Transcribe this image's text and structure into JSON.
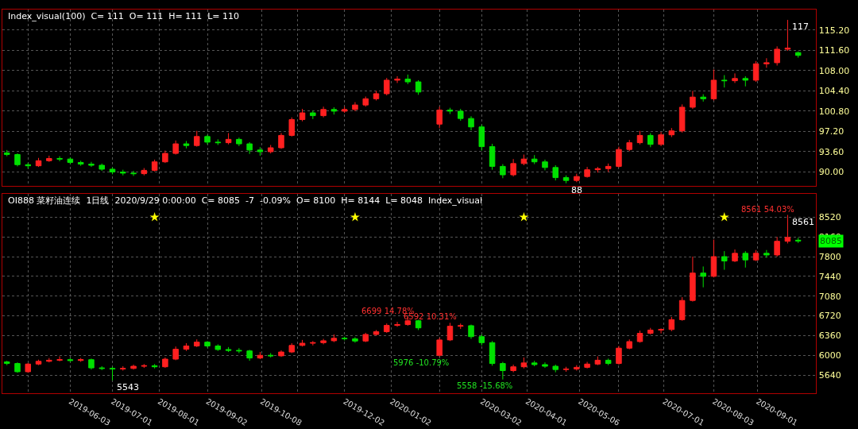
{
  "chart_data": [
    {
      "type": "candlestick",
      "title": "Index_visual(100)  C= 111  O= 111  H= 111  L= 110",
      "x": [
        "2019-04-22",
        "2019-04-29",
        "2019-05-06",
        "2019-05-13",
        "2019-05-20",
        "2019-05-27",
        "2019-06-03",
        "2019-06-10",
        "2019-06-17",
        "2019-06-24",
        "2019-07-01",
        "2019-07-08",
        "2019-07-15",
        "2019-07-22",
        "2019-07-29",
        "2019-08-05",
        "2019-08-12",
        "2019-08-19",
        "2019-08-26",
        "2019-09-02",
        "2019-09-09",
        "2019-09-16",
        "2019-09-23",
        "2019-09-30",
        "2019-10-07",
        "2019-10-14",
        "2019-10-21",
        "2019-10-28",
        "2019-11-04",
        "2019-11-11",
        "2019-11-18",
        "2019-11-25",
        "2019-12-02",
        "2019-12-09",
        "2019-12-16",
        "2019-12-23",
        "2019-12-30",
        "2020-01-06",
        "2020-01-13",
        "2020-01-20",
        "2020-02-03",
        "2020-02-10",
        "2020-02-17",
        "2020-02-24",
        "2020-03-02",
        "2020-03-09",
        "2020-03-16",
        "2020-03-23",
        "2020-03-30",
        "2020-04-06",
        "2020-04-13",
        "2020-04-20",
        "2020-04-27",
        "2020-05-04",
        "2020-05-11",
        "2020-05-18",
        "2020-05-25",
        "2020-06-01",
        "2020-06-08",
        "2020-06-15",
        "2020-06-22",
        "2020-06-29",
        "2020-07-06",
        "2020-07-13",
        "2020-07-20",
        "2020-07-27",
        "2020-08-03",
        "2020-08-10",
        "2020-08-17",
        "2020-08-24",
        "2020-08-31",
        "2020-09-07",
        "2020-09-14",
        "2020-09-21",
        "2020-09-28"
      ],
      "ohlc": [
        [
          93.4,
          93.9,
          92.8,
          93.1
        ],
        [
          93.1,
          93.3,
          91.0,
          91.3
        ],
        [
          91.3,
          91.6,
          90.6,
          91.1
        ],
        [
          91.1,
          92.5,
          90.9,
          92.0
        ],
        [
          92.0,
          92.9,
          91.8,
          92.4
        ],
        [
          92.4,
          92.8,
          91.9,
          92.3
        ],
        [
          92.3,
          92.6,
          91.4,
          91.7
        ],
        [
          91.7,
          92.0,
          91.1,
          91.4
        ],
        [
          91.4,
          91.8,
          90.9,
          91.2
        ],
        [
          91.2,
          91.5,
          90.2,
          90.5
        ],
        [
          90.5,
          90.8,
          89.6,
          90.0
        ],
        [
          90.0,
          90.4,
          89.4,
          89.8
        ],
        [
          89.8,
          90.2,
          89.3,
          89.7
        ],
        [
          89.7,
          90.7,
          89.4,
          90.3
        ],
        [
          90.3,
          92.2,
          90.1,
          91.8
        ],
        [
          91.8,
          93.8,
          91.6,
          93.3
        ],
        [
          93.3,
          95.6,
          93.1,
          95.0
        ],
        [
          95.0,
          95.5,
          94.2,
          94.7
        ],
        [
          94.7,
          97.3,
          94.5,
          96.3
        ],
        [
          96.3,
          96.6,
          94.9,
          95.3
        ],
        [
          95.3,
          95.8,
          94.8,
          95.2
        ],
        [
          95.2,
          96.9,
          94.9,
          95.8
        ],
        [
          95.8,
          96.1,
          94.6,
          95.0
        ],
        [
          95.0,
          95.3,
          93.2,
          93.9
        ],
        [
          93.9,
          94.4,
          92.9,
          93.6
        ],
        [
          93.6,
          94.8,
          93.3,
          94.3
        ],
        [
          94.3,
          96.9,
          94.1,
          96.5
        ],
        [
          96.5,
          99.7,
          96.3,
          99.3
        ],
        [
          99.3,
          101.2,
          99.0,
          100.5
        ],
        [
          100.5,
          100.9,
          99.4,
          100.0
        ],
        [
          100.0,
          101.6,
          99.7,
          101.1
        ],
        [
          101.1,
          101.5,
          100.2,
          100.8
        ],
        [
          100.8,
          101.6,
          100.5,
          101.1
        ],
        [
          101.1,
          102.4,
          100.8,
          101.9
        ],
        [
          101.9,
          103.4,
          101.6,
          103.0
        ],
        [
          103.0,
          104.4,
          102.7,
          103.9
        ],
        [
          103.9,
          106.7,
          103.6,
          106.3
        ],
        [
          106.3,
          107.0,
          105.8,
          106.5
        ],
        [
          106.5,
          107.3,
          105.6,
          106.0
        ],
        [
          106.0,
          106.3,
          103.7,
          104.2
        ],
        [
          98.5,
          101.6,
          97.8,
          101.0
        ],
        [
          101.0,
          101.4,
          100.3,
          100.8
        ],
        [
          100.8,
          101.2,
          99.1,
          99.5
        ],
        [
          99.5,
          99.9,
          97.4,
          98.0
        ],
        [
          98.0,
          98.4,
          93.8,
          94.5
        ],
        [
          94.5,
          95.0,
          90.4,
          91.0
        ],
        [
          91.0,
          91.4,
          88.9,
          89.5
        ],
        [
          89.5,
          92.3,
          89.2,
          91.5
        ],
        [
          91.5,
          93.1,
          91.2,
          92.3
        ],
        [
          92.3,
          93.0,
          91.4,
          91.8
        ],
        [
          91.8,
          92.2,
          90.3,
          90.8
        ],
        [
          90.8,
          91.2,
          88.5,
          89.0
        ],
        [
          89.0,
          89.4,
          88.0,
          88.5
        ],
        [
          88.5,
          89.7,
          88.2,
          89.2
        ],
        [
          89.2,
          90.9,
          89.0,
          90.4
        ],
        [
          90.4,
          90.9,
          89.9,
          90.6
        ],
        [
          90.6,
          91.5,
          90.0,
          91.0
        ],
        [
          91.0,
          94.5,
          90.8,
          94.0
        ],
        [
          94.0,
          95.7,
          93.7,
          95.2
        ],
        [
          95.2,
          97.3,
          94.9,
          96.5
        ],
        [
          96.5,
          96.9,
          94.4,
          94.9
        ],
        [
          94.9,
          97.1,
          94.6,
          96.6
        ],
        [
          96.6,
          97.8,
          96.2,
          97.3
        ],
        [
          97.3,
          102.0,
          97.0,
          101.5
        ],
        [
          101.5,
          104.4,
          101.2,
          103.3
        ],
        [
          103.3,
          103.8,
          102.5,
          103.0
        ],
        [
          103.0,
          108.2,
          102.7,
          106.3
        ],
        [
          106.3,
          107.2,
          105.0,
          106.2
        ],
        [
          106.2,
          107.5,
          105.8,
          106.6
        ],
        [
          106.6,
          107.0,
          105.2,
          106.3
        ],
        [
          106.3,
          109.7,
          106.0,
          109.2
        ],
        [
          109.2,
          110.2,
          108.5,
          109.4
        ],
        [
          109.4,
          112.3,
          108.9,
          111.8
        ],
        [
          111.8,
          117,
          111.5,
          112.0
        ],
        [
          111.2,
          111.4,
          110.3,
          110.7
        ]
      ],
      "colors": [
        "#00e000",
        "#00e000",
        "#00e000",
        "#ff2020",
        "#ff2020",
        "#00e000",
        "#00e000",
        "#00e000",
        "#00e000",
        "#00e000",
        "#00e000",
        "#00e000",
        "#00e000",
        "#ff2020",
        "#ff2020",
        "#ff2020",
        "#ff2020",
        "#00e000",
        "#ff2020",
        "#00e000",
        "#00e000",
        "#ff2020",
        "#00e000",
        "#00e000",
        "#00e000",
        "#ff2020",
        "#ff2020",
        "#ff2020",
        "#ff2020",
        "#00e000",
        "#ff2020",
        "#00e000",
        "#ff2020",
        "#ff2020",
        "#ff2020",
        "#ff2020",
        "#ff2020",
        "#ff2020",
        "#00e000",
        "#00e000",
        "#ff2020",
        "#00e000",
        "#00e000",
        "#00e000",
        "#00e000",
        "#00e000",
        "#00e000",
        "#ff2020",
        "#ff2020",
        "#00e000",
        "#00e000",
        "#00e000",
        "#00e000",
        "#ff2020",
        "#ff2020",
        "#ff2020",
        "#ff2020",
        "#ff2020",
        "#ff2020",
        "#ff2020",
        "#00e000",
        "#ff2020",
        "#ff2020",
        "#ff2020",
        "#ff2020",
        "#00e000",
        "#ff2020",
        "#00e000",
        "#ff2020",
        "#00e000",
        "#ff2020",
        "#ff2020",
        "#ff2020",
        "#ff2020",
        "#00e000"
      ],
      "xlim": [
        "2019-04-19",
        "2020-10-10"
      ],
      "xticks": [
        {
          "value": "2019-05-06",
          "label": null
        },
        {
          "value": "2019-06-03",
          "label": null
        },
        {
          "value": "2019-07-01",
          "label": null
        },
        {
          "value": "2019-08-01",
          "label": null
        },
        {
          "value": "2019-09-02",
          "label": null
        },
        {
          "value": "2019-10-08",
          "label": null
        },
        {
          "value": "2019-11-01",
          "label": null
        },
        {
          "value": "2019-12-02",
          "label": null
        },
        {
          "value": "2020-01-02",
          "label": null
        },
        {
          "value": "2020-02-03",
          "label": null
        },
        {
          "value": "2020-03-02",
          "label": null
        },
        {
          "value": "2020-04-01",
          "label": null
        },
        {
          "value": "2020-05-06",
          "label": null
        },
        {
          "value": "2020-06-01",
          "label": null
        },
        {
          "value": "2020-07-01",
          "label": null
        },
        {
          "value": "2020-08-03",
          "label": null
        },
        {
          "value": "2020-09-01",
          "label": null
        }
      ],
      "ylim": [
        87.5,
        118.9
      ],
      "yticks": [
        {
          "value": 90,
          "label": "90.00"
        },
        {
          "value": 93.6,
          "label": "93.60"
        },
        {
          "value": 97.2,
          "label": "97.20"
        },
        {
          "value": 100.8,
          "label": "100.80"
        },
        {
          "value": 104.4,
          "label": "104.40"
        },
        {
          "value": 108,
          "label": "108.00"
        },
        {
          "value": 111.6,
          "label": "111.60"
        },
        {
          "value": 115.2,
          "label": "115.20"
        }
      ],
      "tick_labels": "y",
      "grid": true,
      "annotations": [
        {
          "text": "117",
          "x": "2020-09-21",
          "y": 117
        },
        {
          "text": "88",
          "x": "2020-04-27",
          "y": 88.0
        }
      ]
    },
    {
      "type": "candlestick",
      "title": "OI888 菜籽油连续  1日线  2020/9/29 0:00:00  C= 8085  -7  -0.09%  O= 8100  H= 8144  L= 8048  Index_visual",
      "x": [
        "2019-04-22",
        "2019-04-29",
        "2019-05-06",
        "2019-05-13",
        "2019-05-20",
        "2019-05-27",
        "2019-06-03",
        "2019-06-10",
        "2019-06-17",
        "2019-06-24",
        "2019-07-01",
        "2019-07-08",
        "2019-07-15",
        "2019-07-22",
        "2019-07-29",
        "2019-08-05",
        "2019-08-12",
        "2019-08-19",
        "2019-08-26",
        "2019-09-02",
        "2019-09-09",
        "2019-09-16",
        "2019-09-23",
        "2019-09-30",
        "2019-10-07",
        "2019-10-14",
        "2019-10-21",
        "2019-10-28",
        "2019-11-04",
        "2019-11-11",
        "2019-11-18",
        "2019-11-25",
        "2019-12-02",
        "2019-12-09",
        "2019-12-16",
        "2019-12-23",
        "2019-12-30",
        "2020-01-06",
        "2020-01-13",
        "2020-01-20",
        "2020-02-03",
        "2020-02-10",
        "2020-02-17",
        "2020-02-24",
        "2020-03-02",
        "2020-03-09",
        "2020-03-16",
        "2020-03-23",
        "2020-03-30",
        "2020-04-06",
        "2020-04-13",
        "2020-04-20",
        "2020-04-27",
        "2020-05-04",
        "2020-05-11",
        "2020-05-18",
        "2020-05-25",
        "2020-06-01",
        "2020-06-08",
        "2020-06-15",
        "2020-06-22",
        "2020-06-29",
        "2020-07-06",
        "2020-07-13",
        "2020-07-20",
        "2020-07-27",
        "2020-08-03",
        "2020-08-10",
        "2020-08-17",
        "2020-08-24",
        "2020-08-31",
        "2020-09-07",
        "2020-09-14",
        "2020-09-21",
        "2020-09-28"
      ],
      "ohlc": [
        [
          5880,
          5900,
          5820,
          5850
        ],
        [
          5850,
          5870,
          5680,
          5700
        ],
        [
          5700,
          5860,
          5680,
          5840
        ],
        [
          5840,
          5920,
          5820,
          5890
        ],
        [
          5890,
          5950,
          5870,
          5910
        ],
        [
          5910,
          5980,
          5890,
          5920
        ],
        [
          5920,
          5950,
          5880,
          5905
        ],
        [
          5905,
          5950,
          5880,
          5920
        ],
        [
          5920,
          5940,
          5740,
          5770
        ],
        [
          5770,
          5800,
          5730,
          5760
        ],
        [
          5760,
          5790,
          5543,
          5750
        ],
        [
          5750,
          5800,
          5720,
          5760
        ],
        [
          5760,
          5830,
          5740,
          5800
        ],
        [
          5800,
          5840,
          5770,
          5810
        ],
        [
          5810,
          5840,
          5760,
          5790
        ],
        [
          5790,
          5960,
          5770,
          5930
        ],
        [
          5930,
          6160,
          5910,
          6110
        ],
        [
          6110,
          6220,
          6080,
          6170
        ],
        [
          6170,
          6290,
          6150,
          6240
        ],
        [
          6240,
          6260,
          6140,
          6170
        ],
        [
          6170,
          6200,
          6080,
          6105
        ],
        [
          6105,
          6150,
          6060,
          6090
        ],
        [
          6090,
          6130,
          6040,
          6080
        ],
        [
          6080,
          6100,
          5900,
          5950
        ],
        [
          5950,
          6060,
          5930,
          6000
        ],
        [
          6000,
          6040,
          5960,
          5990
        ],
        [
          5990,
          6090,
          5970,
          6060
        ],
        [
          6060,
          6220,
          6040,
          6180
        ],
        [
          6180,
          6280,
          6160,
          6220
        ],
        [
          6220,
          6260,
          6180,
          6230
        ],
        [
          6230,
          6300,
          6200,
          6265
        ],
        [
          6265,
          6380,
          6240,
          6310
        ],
        [
          6310,
          6340,
          6270,
          6300
        ],
        [
          6300,
          6330,
          6230,
          6260
        ],
        [
          6260,
          6410,
          6240,
          6380
        ],
        [
          6380,
          6460,
          6360,
          6430
        ],
        [
          6430,
          6580,
          6410,
          6545
        ],
        [
          6545,
          6610,
          6520,
          6560
        ],
        [
          6560,
          6699,
          6540,
          6630
        ],
        [
          6630,
          6650,
          6460,
          6500
        ],
        [
          6000,
          6320,
          5976,
          6280
        ],
        [
          6280,
          6592,
          6260,
          6530
        ],
        [
          6530,
          6580,
          6480,
          6540
        ],
        [
          6540,
          6560,
          6300,
          6340
        ],
        [
          6340,
          6380,
          6180,
          6230
        ],
        [
          6230,
          6260,
          5810,
          5850
        ],
        [
          5850,
          5880,
          5558,
          5720
        ],
        [
          5720,
          5830,
          5690,
          5790
        ],
        [
          5790,
          5960,
          5760,
          5860
        ],
        [
          5860,
          5900,
          5800,
          5830
        ],
        [
          5830,
          5870,
          5770,
          5800
        ],
        [
          5800,
          5830,
          5690,
          5740
        ],
        [
          5740,
          5790,
          5700,
          5750
        ],
        [
          5750,
          5820,
          5720,
          5780
        ],
        [
          5780,
          5880,
          5760,
          5840
        ],
        [
          5840,
          5980,
          5820,
          5910
        ],
        [
          5910,
          5940,
          5820,
          5850
        ],
        [
          5850,
          6170,
          5830,
          6130
        ],
        [
          6130,
          6290,
          6110,
          6250
        ],
        [
          6250,
          6450,
          6230,
          6400
        ],
        [
          6400,
          6500,
          6380,
          6460
        ],
        [
          6460,
          6490,
          6400,
          6470
        ],
        [
          6470,
          6700,
          6440,
          6650
        ],
        [
          6650,
          7060,
          6630,
          7000
        ],
        [
          7000,
          7800,
          6980,
          7500
        ],
        [
          7500,
          7620,
          7240,
          7440
        ],
        [
          7440,
          8110,
          7420,
          7800
        ],
        [
          7800,
          7900,
          7560,
          7720
        ],
        [
          7720,
          7930,
          7700,
          7860
        ],
        [
          7860,
          7900,
          7600,
          7740
        ],
        [
          7740,
          7920,
          7720,
          7860
        ],
        [
          7860,
          7920,
          7780,
          7830
        ],
        [
          7830,
          8160,
          7800,
          8080
        ],
        [
          8080,
          8561,
          8040,
          8150
        ],
        [
          8100,
          8144,
          8048,
          8085
        ]
      ],
      "colors": [
        "#00e000",
        "#00e000",
        "#ff2020",
        "#ff2020",
        "#ff2020",
        "#ff2020",
        "#00e000",
        "#ff2020",
        "#00e000",
        "#00e000",
        "#00e000",
        "#ff2020",
        "#ff2020",
        "#ff2020",
        "#00e000",
        "#ff2020",
        "#ff2020",
        "#ff2020",
        "#ff2020",
        "#00e000",
        "#00e000",
        "#00e000",
        "#00e000",
        "#00e000",
        "#ff2020",
        "#00e000",
        "#ff2020",
        "#ff2020",
        "#ff2020",
        "#ff2020",
        "#ff2020",
        "#ff2020",
        "#00e000",
        "#00e000",
        "#ff2020",
        "#ff2020",
        "#ff2020",
        "#ff2020",
        "#ff2020",
        "#00e000",
        "#ff2020",
        "#ff2020",
        "#ff2020",
        "#00e000",
        "#00e000",
        "#00e000",
        "#00e000",
        "#ff2020",
        "#ff2020",
        "#00e000",
        "#00e000",
        "#00e000",
        "#ff2020",
        "#ff2020",
        "#ff2020",
        "#ff2020",
        "#00e000",
        "#ff2020",
        "#ff2020",
        "#ff2020",
        "#ff2020",
        "#ff2020",
        "#ff2020",
        "#ff2020",
        "#ff2020",
        "#00e000",
        "#ff2020",
        "#00e000",
        "#ff2020",
        "#00e000",
        "#ff2020",
        "#00e000",
        "#ff2020",
        "#ff2020",
        "#00e000"
      ],
      "series": [
        {
          "type": "scatter",
          "marker": "star",
          "color": "#ffff00",
          "x": [
            "2019-07-29",
            "2019-12-09",
            "2020-03-30",
            "2020-08-10"
          ],
          "values": [
            8520,
            8520,
            8520,
            8520
          ]
        }
      ],
      "xlim": [
        "2019-04-19",
        "2020-10-10"
      ],
      "xticks": [
        {
          "value": "2019-05-06",
          "label": null
        },
        "2019-06-03",
        "2019-07-01",
        "2019-08-01",
        "2019-09-02",
        "2019-10-08",
        {
          "value": "2019-11-01",
          "label": null
        },
        "2019-12-02",
        "2020-01-02",
        {
          "value": "2020-02-03",
          "label": null
        },
        "2020-03-02",
        "2020-04-01",
        "2020-05-06",
        {
          "value": "2020-06-01",
          "label": null
        },
        "2020-07-01",
        "2020-08-03",
        "2020-09-01"
      ],
      "ylim": [
        5310,
        8940
      ],
      "yticks": [
        5640,
        6000,
        6360,
        6720,
        7080,
        7440,
        7800,
        8160,
        8520
      ],
      "grid": true,
      "annotations": [
        {
          "text": "5543",
          "x": "2019-07-01",
          "y": 5543
        },
        {
          "text": "6699 14.78%",
          "x": "2020-01-13",
          "y": 6699
        },
        {
          "text": "5976 -10.79%",
          "x": "2020-02-03",
          "y": 5976
        },
        {
          "text": "6592 10.31%",
          "x": "2020-02-10",
          "y": 6592
        },
        {
          "text": "5558 -15.68%",
          "x": "2020-03-16",
          "y": 5558
        },
        {
          "text": "8561 54.03%",
          "x": "2020-09-21",
          "y": 8561
        },
        {
          "text": "8561",
          "x": "2020-09-21",
          "y": 8561
        },
        "8085"
      ]
    }
  ]
}
